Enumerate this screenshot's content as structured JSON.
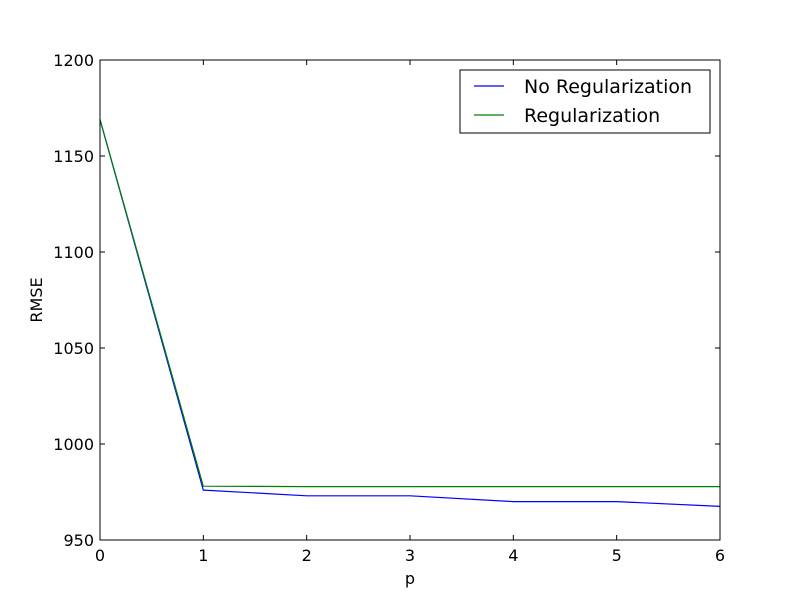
{
  "chart_data": {
    "type": "line",
    "xlabel": "p",
    "ylabel": "RMSE",
    "xlim": [
      0,
      6
    ],
    "ylim": [
      950,
      1200
    ],
    "xticks": [
      0,
      1,
      2,
      3,
      4,
      5,
      6
    ],
    "yticks": [
      950,
      1000,
      1050,
      1100,
      1150,
      1200
    ],
    "grid": false,
    "legend_position": "top-right",
    "x": [
      0,
      1,
      2,
      3,
      4,
      5,
      6
    ],
    "series": [
      {
        "name": "No Regularization",
        "color": "#0000ff",
        "values": [
          1169,
          976,
          973,
          973,
          970,
          970,
          967.5
        ]
      },
      {
        "name": "Regularization",
        "color": "#008000",
        "values": [
          1169,
          978,
          977.8,
          977.8,
          977.8,
          977.8,
          977.8
        ]
      }
    ]
  }
}
